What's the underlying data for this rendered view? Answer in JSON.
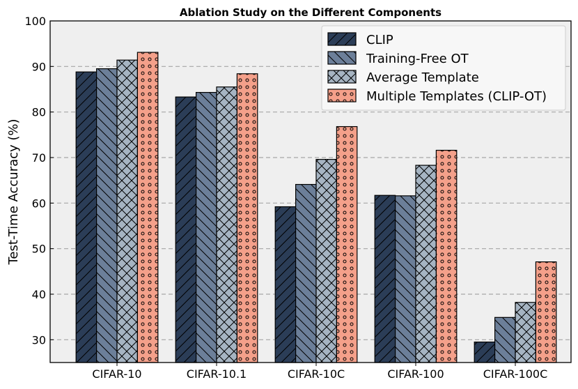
{
  "chart_data": {
    "type": "bar",
    "title": "Ablation Study on the Different Components",
    "xlabel": "",
    "ylabel": "Test-Time Accuracy (%)",
    "ylim": [
      25,
      100
    ],
    "yticks": [
      "30",
      "40",
      "50",
      "60",
      "70",
      "80",
      "90",
      "100"
    ],
    "grid": "horizontal dashed",
    "legend_position": "top-right",
    "categories": [
      "CIFAR-10",
      "CIFAR-10.1",
      "CIFAR-10C",
      "CIFAR-100",
      "CIFAR-100C"
    ],
    "series": [
      {
        "name": "CLIP",
        "values": [
          88.8,
          83.3,
          59.2,
          61.7,
          29.5
        ],
        "color": "#2b3d57",
        "hatch": "forward-slash"
      },
      {
        "name": "Training-Free OT",
        "values": [
          89.5,
          84.3,
          64.1,
          61.6,
          34.9
        ],
        "color": "#6c7f99",
        "hatch": "back-slash"
      },
      {
        "name": "Average Template",
        "values": [
          91.4,
          85.5,
          69.6,
          68.3,
          38.2
        ],
        "color": "#a6b4c2",
        "hatch": "cross"
      },
      {
        "name": "Multiple Templates (CLIP-OT)",
        "values": [
          93.1,
          88.4,
          76.8,
          71.6,
          47.1
        ],
        "color": "#f4a08a",
        "hatch": "circles"
      }
    ],
    "background_color": "#efefef",
    "grid_color": "#a6a6a6"
  }
}
